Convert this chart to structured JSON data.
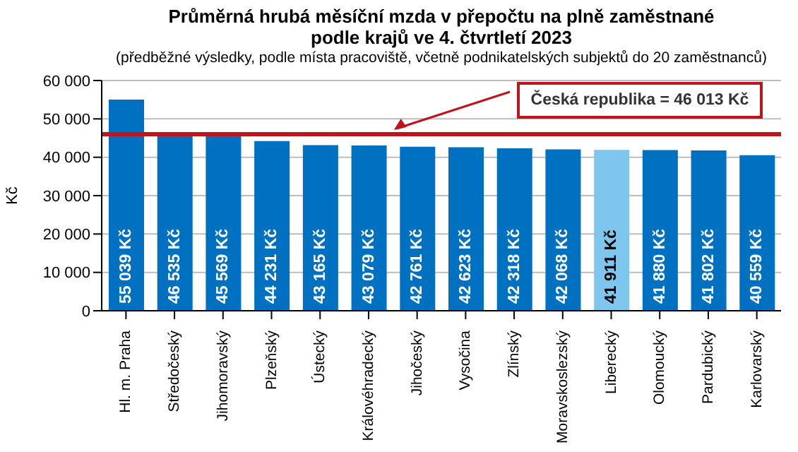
{
  "chart_data": {
    "type": "bar",
    "title": "Průměrná hrubá měsíční mzda v přepočtu na plně zaměstnané podle krajů ve 4. čtvrtletí 2023",
    "subtitle": "(předběžné výsledky, podle místa pracoviště, včetně podnikatelských subjektů do 20 zaměstnanců)",
    "ylabel": "Kč",
    "categories": [
      "Hl. m. Praha",
      "Středočeský",
      "Jihomoravský",
      "Plzeňský",
      "Ústecký",
      "Královéhradecký",
      "Jihočeský",
      "Vysočina",
      "Zlínský",
      "Moravskoslezský",
      "Liberecký",
      "Olomoucký",
      "Pardubický",
      "Karlovarský"
    ],
    "values": [
      55039,
      46535,
      45569,
      44231,
      43165,
      43079,
      42761,
      42623,
      42318,
      42068,
      41911,
      41880,
      41802,
      40559
    ],
    "value_labels": [
      "55 039 Kč",
      "46 535 Kč",
      "45 569 Kč",
      "44 231 Kč",
      "43 165 Kč",
      "43 079 Kč",
      "42 761 Kč",
      "42 623 Kč",
      "42 318 Kč",
      "42 068 Kč",
      "41 911 Kč",
      "41 880 Kč",
      "41 802 Kč",
      "40 559 Kč"
    ],
    "colors": [
      "#0070c0",
      "#0070c0",
      "#0070c0",
      "#0070c0",
      "#0070c0",
      "#0070c0",
      "#0070c0",
      "#0070c0",
      "#0070c0",
      "#0070c0",
      "#7fc6ee",
      "#0070c0",
      "#0070c0",
      "#0070c0"
    ],
    "ylim": [
      0,
      60000
    ],
    "yticks": [
      {
        "value": 0,
        "label": "0"
      },
      {
        "value": 10000,
        "label": "10 000"
      },
      {
        "value": 20000,
        "label": "20 000"
      },
      {
        "value": 30000,
        "label": "30 000"
      },
      {
        "value": 40000,
        "label": "40 000"
      },
      {
        "value": 50000,
        "label": "50 000"
      },
      {
        "value": 60000,
        "label": "60 000"
      }
    ],
    "grid": "y",
    "legend": false,
    "ref_lines": [
      {
        "axis": "y",
        "value": 46013,
        "label": "Česká republika = 46 013 Kč",
        "color": "#c0141c"
      }
    ]
  }
}
